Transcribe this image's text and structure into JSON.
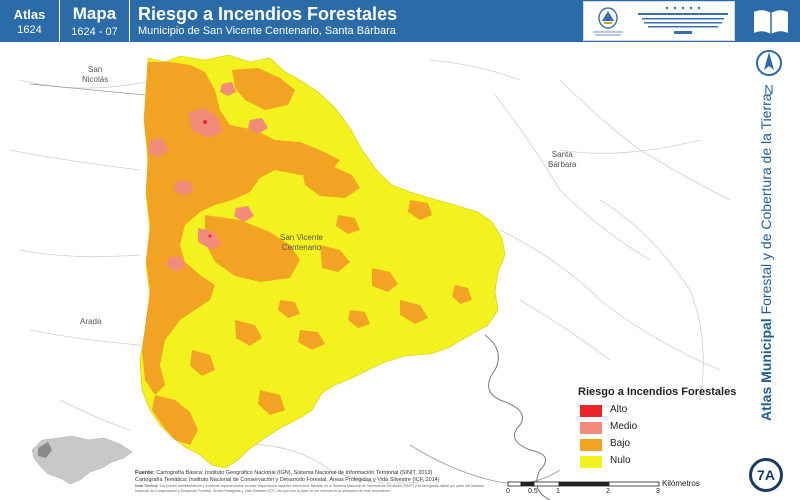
{
  "header": {
    "atlas_label": "Atlas",
    "atlas_number": "1624",
    "map_label": "Mapa",
    "map_number": "1624 - 07",
    "title": "Riesgo a Incendios Forestales",
    "subtitle": "Municipio de San Vicente Centenario, Santa Bárbara",
    "logo_left_caption": "GOBIERNO DE LA REPÚBLICA DE HONDURAS",
    "logo_right_caption": "INSTITUTO NACIONAL DE CONSERVACIÓN Y DESARROLLO FORESTAL, ÁREAS PROTEGIDAS Y VIDA SILVESTRE",
    "logo_right_abbr": "ICF"
  },
  "places": {
    "san_nicolas": "San\nNicolás",
    "santa_barbara": "Santa\nBárbara",
    "san_vicente": "San Vicente\nCentenario",
    "arada": "Arada"
  },
  "north_label": "N",
  "vertical_title": {
    "bold": "Atlas Municipal",
    "rest": "Forestal y de Cobertura de la Tierra"
  },
  "badge": "7A",
  "legend": {
    "title": "Riesgo a Incendios Forestales",
    "items": [
      {
        "label": "Alto",
        "color": "#e8262a"
      },
      {
        "label": "Medio",
        "color": "#f28b7a"
      },
      {
        "label": "Bajo",
        "color": "#f2a323"
      },
      {
        "label": "Nulo",
        "color": "#f4f21e"
      }
    ]
  },
  "credits": {
    "fuente_label": "Fuente:",
    "fuente_text": "Cartografía Básica: Instituto Geográfico Nacional (IGN), Sistema Nacional de Información Territorial (SINIT, 2013)",
    "tematica": "Cartografía Temática: Instituto Nacional de Conservación y Desarrollo Forestal, Áreas Protegidas y Vida Silvestre (ICF, 2014)",
    "nota_label": "Nota Técnica:",
    "nota_text": "Los límites administrativos y fronteras representados en este mapa tienen carácter referencial. Basado en el Sistema Nacional de Información Territorial (SINIT) y la cartografía oficial por parte del Instituto Nacional de Conservación y Desarrollo Forestal, Áreas Protegidas y Vida Silvestre (ICF), las que son la base de los mismos en la utilización de este documento."
  },
  "scale": {
    "units": "Kilómetros",
    "ticks": [
      "0",
      "0.5",
      "1",
      "2",
      "3"
    ]
  },
  "colors": {
    "header_bg": "#2a6ba8",
    "alto": "#e8262a",
    "medio": "#f28b7a",
    "bajo": "#f2a323",
    "nulo": "#f4f21e"
  }
}
